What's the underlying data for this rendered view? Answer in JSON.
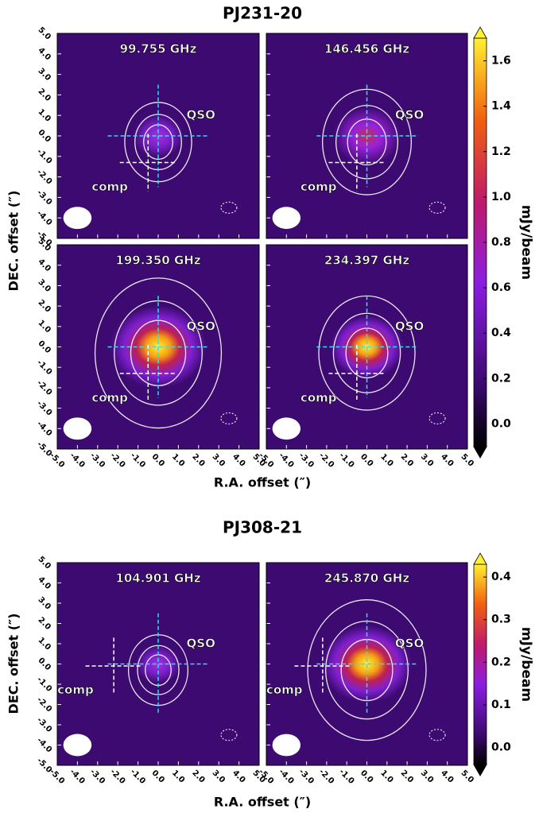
{
  "figures": [
    {
      "title": "PJ231-20",
      "panels": [
        {
          "label": "99.755 GHz"
        },
        {
          "label": "146.456 GHz"
        },
        {
          "label": "199.350 GHz"
        },
        {
          "label": "234.397 GHz"
        }
      ],
      "qso_label": "QSO",
      "comp_label": "comp",
      "xlabel": "R.A. offset (″)",
      "ylabel": "DEC. offset (″)",
      "xlim": [
        -5,
        5
      ],
      "ylim": [
        -5,
        5
      ],
      "xticks": [
        {
          "value": -5,
          "label": "-5.0"
        },
        {
          "value": -4,
          "label": "-4.0"
        },
        {
          "value": -3,
          "label": "-3.0"
        },
        {
          "value": -2,
          "label": "-2.0"
        },
        {
          "value": -1,
          "label": "-1.0"
        },
        {
          "value": 0,
          "label": "0.0"
        },
        {
          "value": 1,
          "label": "1.0"
        },
        {
          "value": 2,
          "label": "2.0"
        },
        {
          "value": 3,
          "label": "3.0"
        },
        {
          "value": 4,
          "label": "4.0"
        },
        {
          "value": 5,
          "label": "5.0"
        }
      ],
      "yticks": [
        {
          "value": -5,
          "label": "-5.0"
        },
        {
          "value": -4,
          "label": "-4.0"
        },
        {
          "value": -3,
          "label": "-3.0"
        },
        {
          "value": -2,
          "label": "-2.0"
        },
        {
          "value": -1,
          "label": "-1.0"
        },
        {
          "value": 0,
          "label": "0.0"
        },
        {
          "value": 1,
          "label": "1.0"
        },
        {
          "value": 2,
          "label": "2.0"
        },
        {
          "value": 3,
          "label": "3.0"
        },
        {
          "value": 4,
          "label": "4.0"
        },
        {
          "value": 5,
          "label": "5.0"
        }
      ],
      "colorbar": {
        "label": "mJy/beam",
        "lim": [
          -0.1,
          1.7
        ],
        "ticks": [
          {
            "value": 0,
            "label": "0.0"
          },
          {
            "value": 0.2,
            "label": "0.2"
          },
          {
            "value": 0.4,
            "label": "0.4"
          },
          {
            "value": 0.6,
            "label": "0.6"
          },
          {
            "value": 0.8,
            "label": "0.8"
          },
          {
            "value": 1,
            "label": "1.0"
          },
          {
            "value": 1.2,
            "label": "1.2"
          },
          {
            "value": 1.4,
            "label": "1.4"
          },
          {
            "value": 1.6,
            "label": "1.6"
          }
        ]
      }
    },
    {
      "title": "PJ308-21",
      "panels": [
        {
          "label": "104.901 GHz"
        },
        {
          "label": "245.870 GHz"
        }
      ],
      "qso_label": "QSO",
      "comp_label": "comp",
      "xlabel": "R.A. offset (″)",
      "ylabel": "DEC. offset (″)",
      "xlim": [
        -5,
        5
      ],
      "ylim": [
        -5,
        5
      ],
      "xticks": [
        {
          "value": -5,
          "label": "-5.0"
        },
        {
          "value": -4,
          "label": "-4.0"
        },
        {
          "value": -3,
          "label": "-3.0"
        },
        {
          "value": -2,
          "label": "-2.0"
        },
        {
          "value": -1,
          "label": "-1.0"
        },
        {
          "value": 0,
          "label": "0.0"
        },
        {
          "value": 1,
          "label": "1.0"
        },
        {
          "value": 2,
          "label": "2.0"
        },
        {
          "value": 3,
          "label": "3.0"
        },
        {
          "value": 4,
          "label": "4.0"
        },
        {
          "value": 5,
          "label": "5.0"
        }
      ],
      "yticks": [
        {
          "value": -5,
          "label": "-5.0"
        },
        {
          "value": -4,
          "label": "-4.0"
        },
        {
          "value": -3,
          "label": "-3.0"
        },
        {
          "value": -2,
          "label": "-2.0"
        },
        {
          "value": -1,
          "label": "-1.0"
        },
        {
          "value": 0,
          "label": "0.0"
        },
        {
          "value": 1,
          "label": "1.0"
        },
        {
          "value": 2,
          "label": "2.0"
        },
        {
          "value": 3,
          "label": "3.0"
        },
        {
          "value": 4,
          "label": "4.0"
        },
        {
          "value": 5,
          "label": "5.0"
        }
      ],
      "colorbar": {
        "label": "mJy/beam",
        "lim": [
          -0.04,
          0.43
        ],
        "ticks": [
          {
            "value": 0,
            "label": "0.0"
          },
          {
            "value": 0.1,
            "label": "0.1"
          },
          {
            "value": 0.2,
            "label": "0.2"
          },
          {
            "value": 0.3,
            "label": "0.3"
          },
          {
            "value": 0.4,
            "label": "0.4"
          }
        ]
      }
    }
  ]
}
